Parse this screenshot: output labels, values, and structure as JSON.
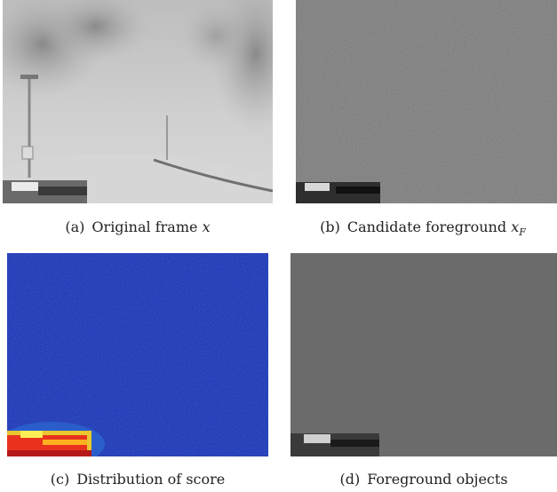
{
  "figure": {
    "panels": [
      {
        "id": "a",
        "tag": "(a)",
        "caption": "Original frame",
        "symbol": "x",
        "subscript": ""
      },
      {
        "id": "b",
        "tag": "(b)",
        "caption": "Candidate foreground",
        "symbol": "x",
        "subscript": "F"
      },
      {
        "id": "c",
        "tag": "(c)",
        "caption": "Distribution of score",
        "symbol": "",
        "subscript": ""
      },
      {
        "id": "d",
        "tag": "(d)",
        "caption": "Foreground objects",
        "symbol": "",
        "subscript": ""
      }
    ]
  },
  "colors": {
    "background": "#ffffff",
    "frame_gray": "#c9c9c9",
    "candidate_gray": "#7a7a7a",
    "score_blue": "#1c2fa8",
    "score_hot": "#e8321e",
    "foreground_gray": "#6b6b6b"
  }
}
